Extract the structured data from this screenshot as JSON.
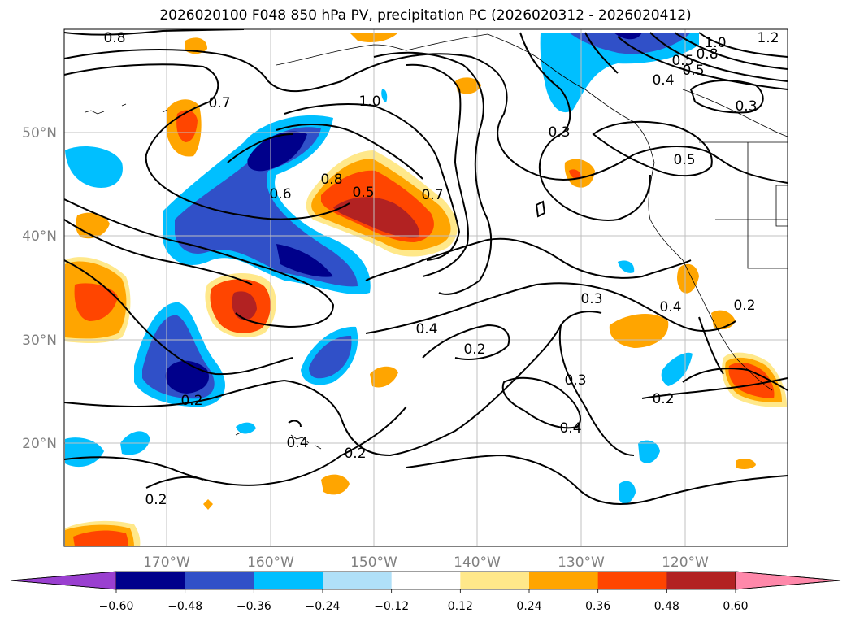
{
  "title": "2026020100 F048 850 hPa PV, precipitation PC (2026020312 - 2026020412)",
  "map": {
    "lon_labels": [
      "170°W",
      "160°W",
      "150°W",
      "140°W",
      "130°W",
      "120°W"
    ],
    "lat_labels": [
      "50°N",
      "40°N",
      "30°N",
      "20°N"
    ]
  },
  "contour_labels": [
    "0.8",
    "1.0",
    "0.7",
    "0.5",
    "0.8",
    "1.0",
    "1.2",
    "0.4",
    "0.8",
    "0.5",
    "0.3",
    "0.6",
    "0.5",
    "0.7",
    "0.3",
    "0.5",
    "0.3",
    "0.4",
    "0.2",
    "0.4",
    "0.2",
    "0.3",
    "0.2",
    "0.4",
    "0.2",
    "0.4",
    "0.2",
    "0.2"
  ],
  "colorbar": {
    "ticks": [
      "−0.60",
      "−0.48",
      "−0.36",
      "−0.24",
      "−0.12",
      "0.12",
      "0.24",
      "0.36",
      "0.48",
      "0.60"
    ],
    "colors": [
      "#9a3fd0",
      "#00008b",
      "#3050c8",
      "#00bfff",
      "#b0e0f8",
      "#ffffff",
      "#ffe88a",
      "#ffa500",
      "#ff4500",
      "#b22222",
      "#ff88aa"
    ]
  }
}
